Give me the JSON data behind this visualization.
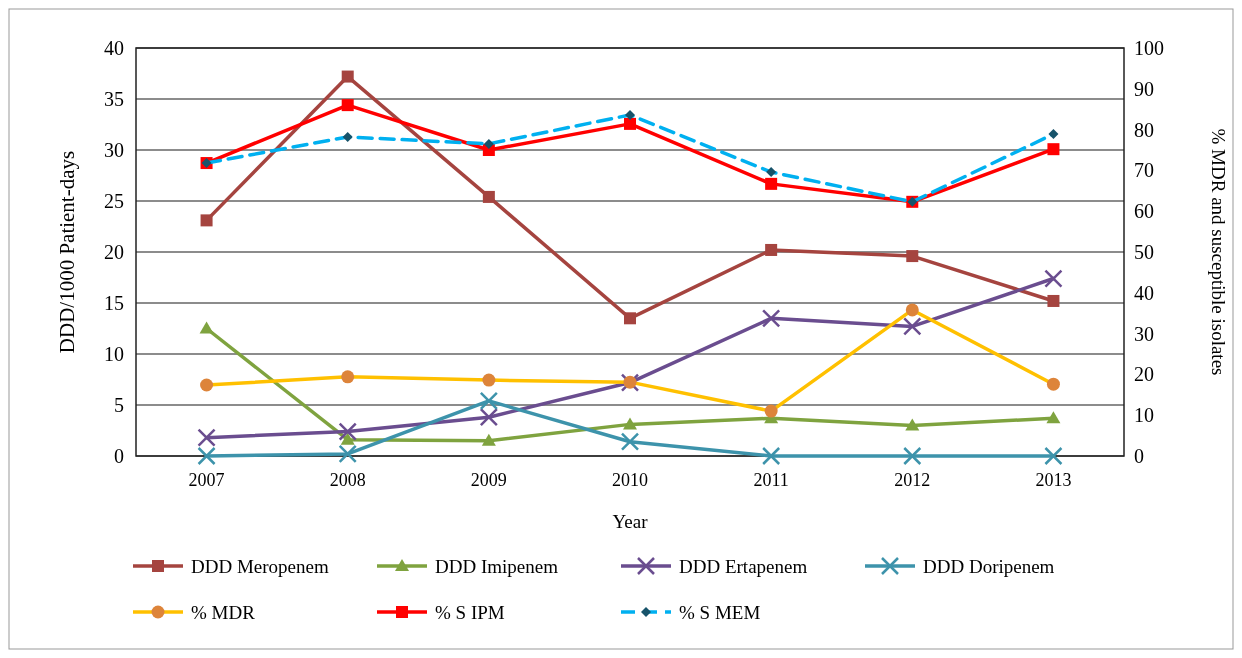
{
  "chart_data": {
    "type": "line",
    "xlabel": "Year",
    "ylabel": "DDD/1000 Patient-days",
    "y2label": "% MDR and susceptible isolates",
    "categories": [
      "2007",
      "2008",
      "2009",
      "2010",
      "2011",
      "2012",
      "2013"
    ],
    "ylim": [
      0,
      40
    ],
    "yticks": [
      0,
      5,
      10,
      15,
      20,
      25,
      30,
      35,
      40
    ],
    "y2lim": [
      0,
      100
    ],
    "y2ticks": [
      0,
      10,
      20,
      30,
      40,
      50,
      60,
      70,
      80,
      90,
      100
    ],
    "grid": "y",
    "legend": "bottom",
    "series": [
      {
        "name": "DDD Meropenem",
        "color": "#a5443f",
        "marker": "square",
        "values": [
          23.1,
          37.2,
          25.4,
          13.5,
          20.2,
          19.6,
          15.2
        ]
      },
      {
        "name": "DDD Imipenem",
        "color": "#7fa33f",
        "marker": "triangle",
        "values": [
          12.5,
          1.6,
          1.5,
          3.1,
          3.7,
          3.0,
          3.7
        ]
      },
      {
        "name": "DDD Ertapenem",
        "color": "#6a4d8f",
        "marker": "cross",
        "values": [
          1.8,
          2.4,
          3.8,
          7.2,
          13.5,
          12.7,
          17.4
        ]
      },
      {
        "name": "DDD Doripenem",
        "color": "#3d93ab",
        "marker": "cross",
        "values": [
          0,
          0.2,
          5.4,
          1.4,
          0,
          0,
          0
        ]
      },
      {
        "name": "% MDR",
        "color": "#ffc000",
        "marker": "circle",
        "axis": "y2",
        "values": [
          17.4,
          19.4,
          18.6,
          18.1,
          11.0,
          35.8,
          17.6
        ]
      },
      {
        "name": "% S IPM",
        "color": "#ff0000",
        "marker": "square",
        "axis": "y2",
        "values": [
          71.8,
          86.0,
          75.0,
          81.4,
          66.7,
          62.3,
          75.2
        ]
      },
      {
        "name": "% S MEM",
        "color": "#00b0f0",
        "marker": "diamond",
        "line_style": "dashed",
        "axis": "y2",
        "values": [
          71.8,
          78.2,
          76.5,
          83.6,
          69.6,
          62.3,
          78.9
        ]
      }
    ]
  }
}
